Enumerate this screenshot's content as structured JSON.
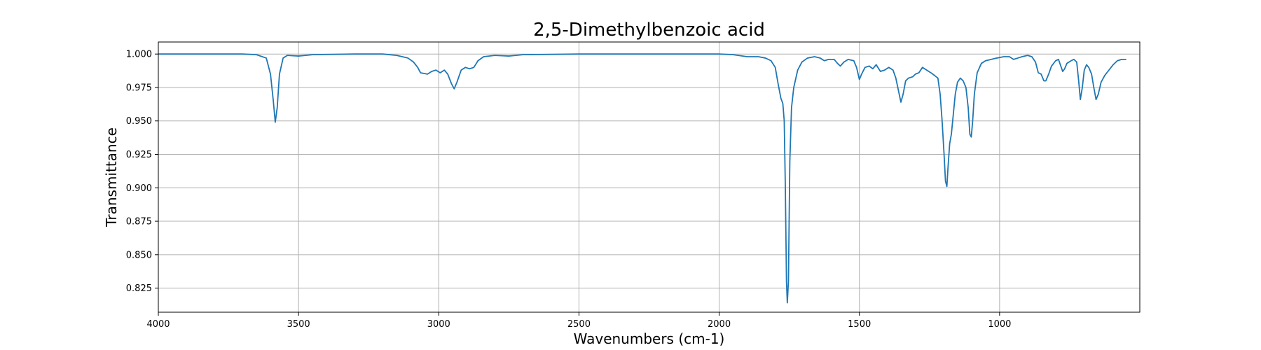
{
  "chart_data": {
    "type": "line",
    "title": "2,5-Dimethylbenzoic acid",
    "xlabel": "Wavenumbers (cm-1)",
    "ylabel": "Transmittance",
    "xlim": [
      4000,
      500
    ],
    "ylim": [
      0.807,
      1.009
    ],
    "x_reversed": true,
    "grid": true,
    "xticks": [
      4000,
      3500,
      3000,
      2500,
      2000,
      1500,
      1000
    ],
    "xtick_labels": [
      "4000",
      "3500",
      "3000",
      "2500",
      "2000",
      "1500",
      "1000"
    ],
    "yticks": [
      0.825,
      0.85,
      0.875,
      0.9,
      0.925,
      0.95,
      0.975,
      1.0
    ],
    "ytick_labels": [
      "0.825",
      "0.850",
      "0.875",
      "0.900",
      "0.925",
      "0.950",
      "0.975",
      "1.000"
    ],
    "series": [
      {
        "color": "#1f77b4",
        "points": [
          [
            4000,
            1.0
          ],
          [
            3900,
            1.0
          ],
          [
            3800,
            1.0
          ],
          [
            3700,
            1.0
          ],
          [
            3650,
            0.9995
          ],
          [
            3615,
            0.997
          ],
          [
            3600,
            0.985
          ],
          [
            3590,
            0.965
          ],
          [
            3583,
            0.949
          ],
          [
            3576,
            0.96
          ],
          [
            3568,
            0.985
          ],
          [
            3555,
            0.997
          ],
          [
            3540,
            0.999
          ],
          [
            3500,
            0.9985
          ],
          [
            3450,
            0.9995
          ],
          [
            3300,
            1.0
          ],
          [
            3200,
            1.0
          ],
          [
            3150,
            0.999
          ],
          [
            3110,
            0.997
          ],
          [
            3090,
            0.994
          ],
          [
            3075,
            0.99
          ],
          [
            3065,
            0.986
          ],
          [
            3040,
            0.985
          ],
          [
            3025,
            0.987
          ],
          [
            3010,
            0.988
          ],
          [
            2995,
            0.986
          ],
          [
            2980,
            0.988
          ],
          [
            2968,
            0.985
          ],
          [
            2955,
            0.978
          ],
          [
            2945,
            0.974
          ],
          [
            2935,
            0.979
          ],
          [
            2920,
            0.988
          ],
          [
            2905,
            0.99
          ],
          [
            2890,
            0.989
          ],
          [
            2875,
            0.99
          ],
          [
            2860,
            0.995
          ],
          [
            2840,
            0.998
          ],
          [
            2800,
            0.999
          ],
          [
            2750,
            0.9985
          ],
          [
            2700,
            0.9995
          ],
          [
            2500,
            1.0
          ],
          [
            2300,
            1.0
          ],
          [
            2000,
            1.0
          ],
          [
            1950,
            0.9995
          ],
          [
            1900,
            0.998
          ],
          [
            1860,
            0.998
          ],
          [
            1835,
            0.997
          ],
          [
            1815,
            0.995
          ],
          [
            1800,
            0.99
          ],
          [
            1790,
            0.978
          ],
          [
            1780,
            0.967
          ],
          [
            1773,
            0.963
          ],
          [
            1768,
            0.95
          ],
          [
            1764,
            0.9
          ],
          [
            1760,
            0.83
          ],
          [
            1757,
            0.814
          ],
          [
            1753,
            0.83
          ],
          [
            1748,
            0.92
          ],
          [
            1742,
            0.96
          ],
          [
            1734,
            0.975
          ],
          [
            1720,
            0.988
          ],
          [
            1705,
            0.994
          ],
          [
            1685,
            0.997
          ],
          [
            1660,
            0.998
          ],
          [
            1640,
            0.997
          ],
          [
            1625,
            0.995
          ],
          [
            1610,
            0.996
          ],
          [
            1590,
            0.996
          ],
          [
            1578,
            0.993
          ],
          [
            1568,
            0.991
          ],
          [
            1555,
            0.994
          ],
          [
            1540,
            0.996
          ],
          [
            1520,
            0.995
          ],
          [
            1510,
            0.99
          ],
          [
            1500,
            0.981
          ],
          [
            1492,
            0.985
          ],
          [
            1480,
            0.99
          ],
          [
            1465,
            0.991
          ],
          [
            1452,
            0.989
          ],
          [
            1440,
            0.992
          ],
          [
            1425,
            0.987
          ],
          [
            1410,
            0.988
          ],
          [
            1395,
            0.99
          ],
          [
            1380,
            0.988
          ],
          [
            1370,
            0.982
          ],
          [
            1360,
            0.972
          ],
          [
            1352,
            0.964
          ],
          [
            1344,
            0.97
          ],
          [
            1335,
            0.98
          ],
          [
            1325,
            0.982
          ],
          [
            1310,
            0.983
          ],
          [
            1300,
            0.985
          ],
          [
            1288,
            0.986
          ],
          [
            1275,
            0.99
          ],
          [
            1260,
            0.988
          ],
          [
            1245,
            0.986
          ],
          [
            1232,
            0.984
          ],
          [
            1220,
            0.982
          ],
          [
            1212,
            0.97
          ],
          [
            1205,
            0.95
          ],
          [
            1198,
            0.925
          ],
          [
            1193,
            0.905
          ],
          [
            1188,
            0.901
          ],
          [
            1184,
            0.915
          ],
          [
            1178,
            0.933
          ],
          [
            1172,
            0.94
          ],
          [
            1165,
            0.955
          ],
          [
            1158,
            0.97
          ],
          [
            1150,
            0.979
          ],
          [
            1140,
            0.982
          ],
          [
            1130,
            0.98
          ],
          [
            1120,
            0.975
          ],
          [
            1112,
            0.96
          ],
          [
            1106,
            0.94
          ],
          [
            1101,
            0.938
          ],
          [
            1096,
            0.95
          ],
          [
            1090,
            0.97
          ],
          [
            1080,
            0.986
          ],
          [
            1065,
            0.993
          ],
          [
            1050,
            0.995
          ],
          [
            1030,
            0.996
          ],
          [
            1010,
            0.997
          ],
          [
            985,
            0.998
          ],
          [
            965,
            0.998
          ],
          [
            950,
            0.996
          ],
          [
            935,
            0.997
          ],
          [
            920,
            0.998
          ],
          [
            900,
            0.999
          ],
          [
            885,
            0.998
          ],
          [
            872,
            0.994
          ],
          [
            862,
            0.986
          ],
          [
            852,
            0.985
          ],
          [
            842,
            0.98
          ],
          [
            835,
            0.98
          ],
          [
            825,
            0.985
          ],
          [
            815,
            0.991
          ],
          [
            800,
            0.995
          ],
          [
            790,
            0.996
          ],
          [
            780,
            0.99
          ],
          [
            775,
            0.987
          ],
          [
            768,
            0.989
          ],
          [
            760,
            0.993
          ],
          [
            745,
            0.995
          ],
          [
            735,
            0.996
          ],
          [
            725,
            0.994
          ],
          [
            718,
            0.98
          ],
          [
            712,
            0.966
          ],
          [
            705,
            0.975
          ],
          [
            698,
            0.988
          ],
          [
            690,
            0.992
          ],
          [
            682,
            0.99
          ],
          [
            672,
            0.985
          ],
          [
            664,
            0.975
          ],
          [
            656,
            0.966
          ],
          [
            648,
            0.97
          ],
          [
            638,
            0.979
          ],
          [
            625,
            0.984
          ],
          [
            610,
            0.988
          ],
          [
            595,
            0.992
          ],
          [
            580,
            0.995
          ],
          [
            565,
            0.996
          ],
          [
            550,
            0.996
          ]
        ]
      }
    ]
  }
}
